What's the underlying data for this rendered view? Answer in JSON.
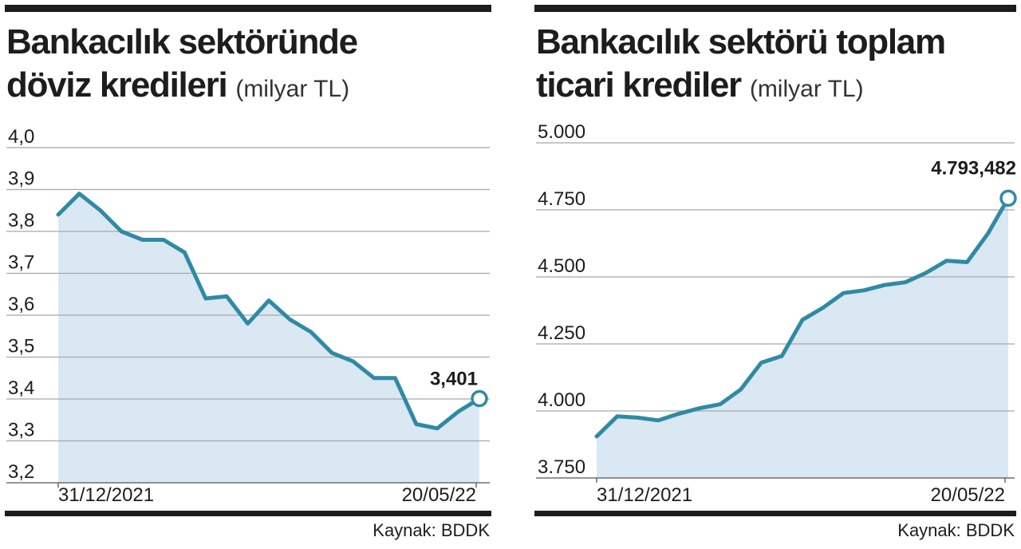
{
  "colors": {
    "line": "#2f8aa6",
    "area": "#dae8f3",
    "grid": "#a7a7a7",
    "rule": "#1d1d1d"
  },
  "chart_data": [
    {
      "type": "area",
      "title_line1": "Bankacılık sektöründe",
      "title_line2": "döviz kredileri",
      "unit": "(milyar TL)",
      "yticks": [
        {
          "value": 4.0,
          "label": "4,0"
        },
        {
          "value": 3.9,
          "label": "3,9"
        },
        {
          "value": 3.8,
          "label": "3,8"
        },
        {
          "value": 3.7,
          "label": "3,7"
        },
        {
          "value": 3.6,
          "label": "3,6"
        },
        {
          "value": 3.5,
          "label": "3,5"
        },
        {
          "value": 3.4,
          "label": "3,4"
        },
        {
          "value": 3.3,
          "label": "3,3"
        },
        {
          "value": 3.2,
          "label": "3,2"
        }
      ],
      "ylim": [
        3.2,
        4.0
      ],
      "x_labels": [
        "31/12/2021",
        "20/05/22"
      ],
      "values": [
        3.84,
        3.89,
        3.85,
        3.8,
        3.78,
        3.78,
        3.75,
        3.64,
        3.645,
        3.58,
        3.635,
        3.59,
        3.56,
        3.51,
        3.49,
        3.45,
        3.45,
        3.34,
        3.33,
        3.37,
        3.401
      ],
      "last_label": "3,401",
      "grid": true,
      "source": "Kaynak: BDDK"
    },
    {
      "type": "area",
      "title_line1": "Bankacılık sektörü toplam",
      "title_line2": "ticari krediler",
      "unit": "(milyar TL)",
      "yticks": [
        {
          "value": 5000,
          "label": "5.000"
        },
        {
          "value": 4750,
          "label": "4.750"
        },
        {
          "value": 4500,
          "label": "4.500"
        },
        {
          "value": 4250,
          "label": "4.250"
        },
        {
          "value": 4000,
          "label": "4.000"
        },
        {
          "value": 3750,
          "label": "3.750"
        }
      ],
      "ylim": [
        3750,
        5000
      ],
      "x_labels": [
        "31/12/2021",
        "20/05/22"
      ],
      "values": [
        3905,
        3980,
        3975,
        3965,
        3990,
        4010,
        4025,
        4080,
        4180,
        4205,
        4340,
        4385,
        4440,
        4450,
        4470,
        4480,
        4515,
        4560,
        4555,
        4660,
        4793.482
      ],
      "last_label": "4.793,482",
      "grid": true,
      "source": "Kaynak: BDDK"
    }
  ]
}
